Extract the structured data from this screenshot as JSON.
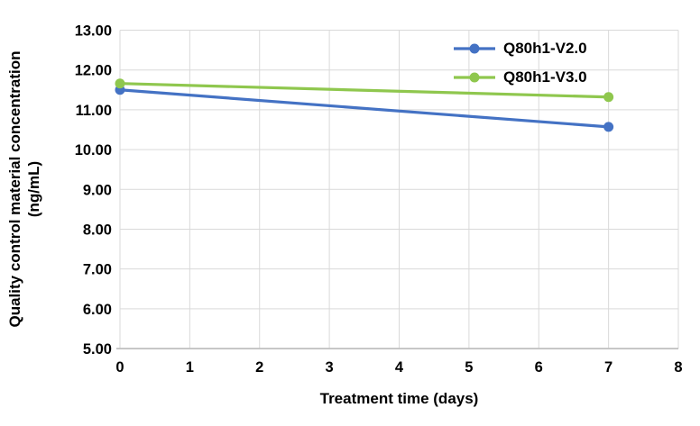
{
  "chart": {
    "background": "#FFFFFF",
    "grid_color": "#D9D9D9",
    "axis_line_color": "#BFBFBF",
    "text_color": "#000000"
  },
  "chart_data": {
    "type": "line",
    "x": [
      0,
      7
    ],
    "series": [
      {
        "name": "Q80h1-V2.0",
        "color": "#4472C4",
        "values": [
          11.5,
          10.57
        ]
      },
      {
        "name": "Q80h1-V3.0",
        "color": "#8FC74E",
        "values": [
          11.66,
          11.32
        ]
      }
    ],
    "title": "",
    "xlabel": "Treatment time (days)",
    "ylabel": "Quality control material concentration (ng/mL)",
    "xlim": [
      0,
      8
    ],
    "ylim": [
      5,
      13
    ],
    "xtick_step": 1,
    "ytick_step": 1,
    "ytick_decimals": 2,
    "grid": "both",
    "legend_position": "top-right",
    "marker": "circle"
  }
}
